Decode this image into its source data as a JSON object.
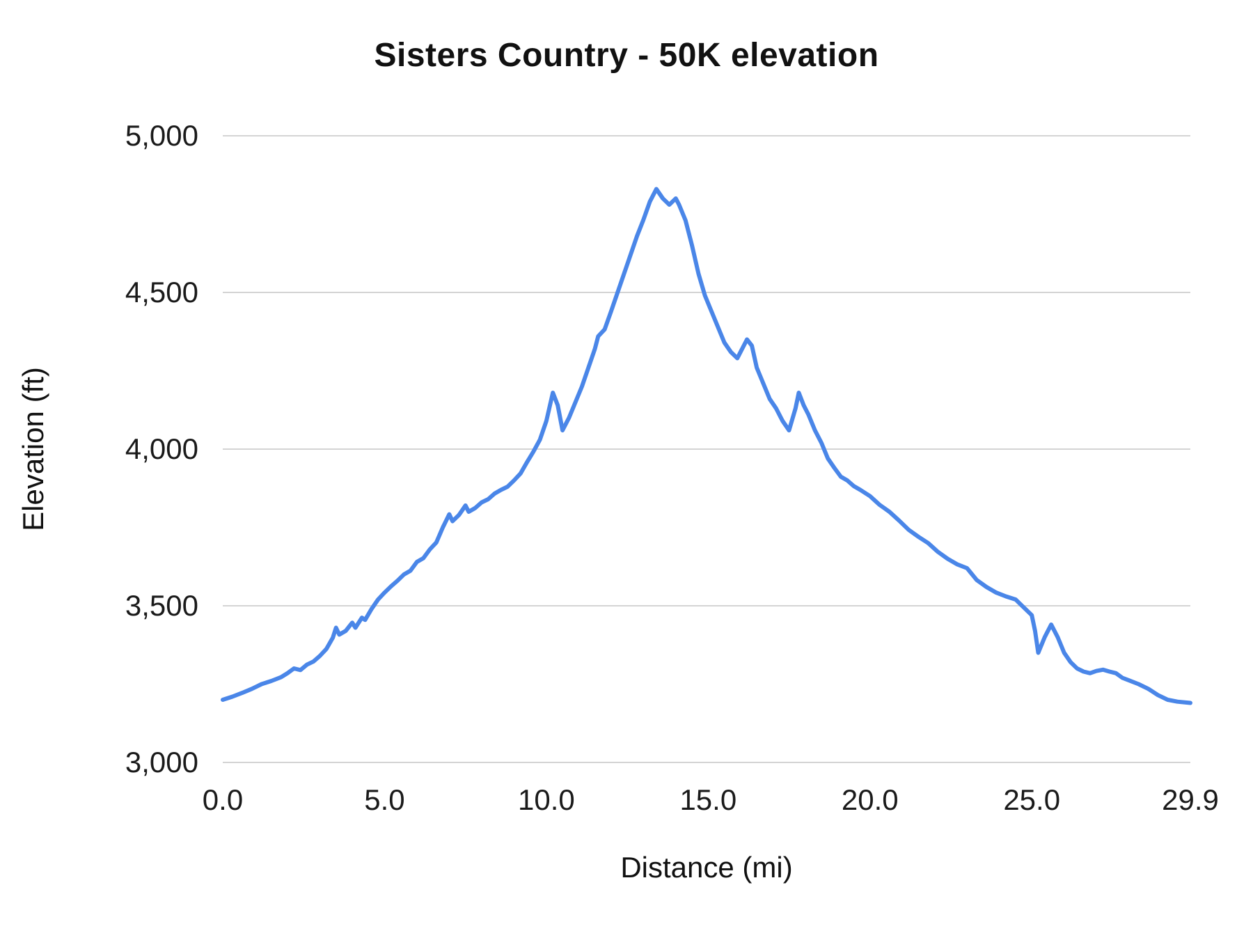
{
  "title": "Sisters Country - 50K elevation",
  "chart_data": {
    "type": "line",
    "title": "Sisters Country - 50K elevation",
    "xlabel": "Distance (mi)",
    "ylabel": "Elevation (ft)",
    "xlim": [
      0,
      29.9
    ],
    "ylim": [
      3000,
      5000
    ],
    "grid": "horizontal-only",
    "legend": "none",
    "line_color": "#4a86e8",
    "grid_color": "#d4d4d4",
    "x_ticks": [
      {
        "value": 0,
        "label": "0.0"
      },
      {
        "value": 5,
        "label": "5.0"
      },
      {
        "value": 10,
        "label": "10.0"
      },
      {
        "value": 15,
        "label": "15.0"
      },
      {
        "value": 20,
        "label": "20.0"
      },
      {
        "value": 25,
        "label": "25.0"
      },
      {
        "value": 29.9,
        "label": "29.9"
      }
    ],
    "y_ticks": [
      {
        "value": 3000,
        "label": "3,000"
      },
      {
        "value": 3500,
        "label": "3,500"
      },
      {
        "value": 4000,
        "label": "4,000"
      },
      {
        "value": 4500,
        "label": "4,500"
      },
      {
        "value": 5000,
        "label": "5,000"
      }
    ],
    "series": [
      {
        "name": "Elevation (ft)",
        "points": [
          [
            0.0,
            3200
          ],
          [
            0.3,
            3210
          ],
          [
            0.6,
            3222
          ],
          [
            0.9,
            3235
          ],
          [
            1.2,
            3250
          ],
          [
            1.5,
            3260
          ],
          [
            1.8,
            3272
          ],
          [
            2.0,
            3285
          ],
          [
            2.2,
            3300
          ],
          [
            2.4,
            3295
          ],
          [
            2.6,
            3312
          ],
          [
            2.8,
            3322
          ],
          [
            3.0,
            3340
          ],
          [
            3.2,
            3362
          ],
          [
            3.4,
            3398
          ],
          [
            3.5,
            3430
          ],
          [
            3.6,
            3408
          ],
          [
            3.8,
            3420
          ],
          [
            4.0,
            3446
          ],
          [
            4.1,
            3430
          ],
          [
            4.3,
            3462
          ],
          [
            4.4,
            3455
          ],
          [
            4.6,
            3490
          ],
          [
            4.8,
            3520
          ],
          [
            5.0,
            3542
          ],
          [
            5.2,
            3562
          ],
          [
            5.4,
            3580
          ],
          [
            5.6,
            3600
          ],
          [
            5.8,
            3612
          ],
          [
            6.0,
            3640
          ],
          [
            6.2,
            3652
          ],
          [
            6.4,
            3680
          ],
          [
            6.6,
            3702
          ],
          [
            6.8,
            3750
          ],
          [
            7.0,
            3792
          ],
          [
            7.1,
            3770
          ],
          [
            7.3,
            3790
          ],
          [
            7.5,
            3820
          ],
          [
            7.6,
            3800
          ],
          [
            7.8,
            3812
          ],
          [
            8.0,
            3830
          ],
          [
            8.2,
            3840
          ],
          [
            8.4,
            3858
          ],
          [
            8.6,
            3870
          ],
          [
            8.8,
            3880
          ],
          [
            9.0,
            3900
          ],
          [
            9.2,
            3922
          ],
          [
            9.4,
            3958
          ],
          [
            9.6,
            3992
          ],
          [
            9.8,
            4030
          ],
          [
            10.0,
            4090
          ],
          [
            10.2,
            4180
          ],
          [
            10.35,
            4140
          ],
          [
            10.5,
            4060
          ],
          [
            10.7,
            4100
          ],
          [
            10.9,
            4150
          ],
          [
            11.1,
            4200
          ],
          [
            11.3,
            4260
          ],
          [
            11.5,
            4320
          ],
          [
            11.6,
            4360
          ],
          [
            11.8,
            4382
          ],
          [
            12.0,
            4440
          ],
          [
            12.2,
            4500
          ],
          [
            12.4,
            4560
          ],
          [
            12.6,
            4620
          ],
          [
            12.8,
            4680
          ],
          [
            13.0,
            4732
          ],
          [
            13.2,
            4790
          ],
          [
            13.4,
            4830
          ],
          [
            13.6,
            4800
          ],
          [
            13.8,
            4780
          ],
          [
            14.0,
            4800
          ],
          [
            14.1,
            4780
          ],
          [
            14.3,
            4730
          ],
          [
            14.5,
            4650
          ],
          [
            14.7,
            4560
          ],
          [
            14.9,
            4490
          ],
          [
            15.1,
            4440
          ],
          [
            15.3,
            4390
          ],
          [
            15.5,
            4340
          ],
          [
            15.7,
            4310
          ],
          [
            15.9,
            4290
          ],
          [
            16.0,
            4310
          ],
          [
            16.2,
            4350
          ],
          [
            16.35,
            4330
          ],
          [
            16.5,
            4260
          ],
          [
            16.7,
            4210
          ],
          [
            16.9,
            4160
          ],
          [
            17.1,
            4130
          ],
          [
            17.3,
            4090
          ],
          [
            17.5,
            4060
          ],
          [
            17.7,
            4130
          ],
          [
            17.8,
            4180
          ],
          [
            17.95,
            4140
          ],
          [
            18.1,
            4110
          ],
          [
            18.3,
            4060
          ],
          [
            18.5,
            4020
          ],
          [
            18.7,
            3970
          ],
          [
            18.9,
            3940
          ],
          [
            19.1,
            3912
          ],
          [
            19.3,
            3900
          ],
          [
            19.5,
            3882
          ],
          [
            19.7,
            3870
          ],
          [
            20.0,
            3850
          ],
          [
            20.3,
            3822
          ],
          [
            20.6,
            3800
          ],
          [
            20.9,
            3772
          ],
          [
            21.2,
            3742
          ],
          [
            21.5,
            3720
          ],
          [
            21.8,
            3700
          ],
          [
            22.1,
            3672
          ],
          [
            22.4,
            3650
          ],
          [
            22.7,
            3632
          ],
          [
            23.0,
            3620
          ],
          [
            23.3,
            3582
          ],
          [
            23.6,
            3560
          ],
          [
            23.9,
            3542
          ],
          [
            24.2,
            3530
          ],
          [
            24.5,
            3520
          ],
          [
            24.8,
            3490
          ],
          [
            25.0,
            3470
          ],
          [
            25.1,
            3420
          ],
          [
            25.2,
            3350
          ],
          [
            25.4,
            3400
          ],
          [
            25.6,
            3440
          ],
          [
            25.8,
            3400
          ],
          [
            26.0,
            3350
          ],
          [
            26.2,
            3320
          ],
          [
            26.4,
            3300
          ],
          [
            26.6,
            3290
          ],
          [
            26.8,
            3285
          ],
          [
            27.0,
            3292
          ],
          [
            27.2,
            3296
          ],
          [
            27.4,
            3290
          ],
          [
            27.6,
            3285
          ],
          [
            27.8,
            3270
          ],
          [
            28.0,
            3262
          ],
          [
            28.3,
            3250
          ],
          [
            28.6,
            3235
          ],
          [
            28.9,
            3215
          ],
          [
            29.2,
            3200
          ],
          [
            29.5,
            3194
          ],
          [
            29.9,
            3190
          ]
        ]
      }
    ]
  }
}
